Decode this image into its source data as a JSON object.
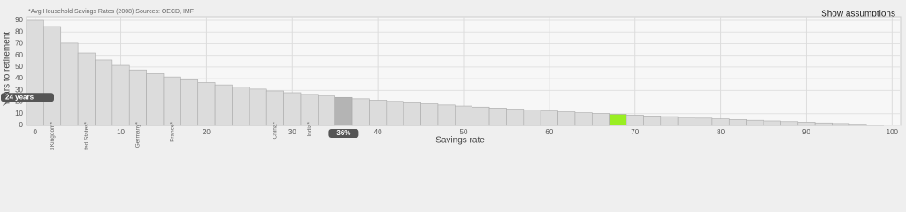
{
  "note": "*Avg Household Savings Rates (2008) Sources: OECD, IMF",
  "link": "Show assumptions",
  "chart_data": {
    "type": "bar",
    "x_label": "Savings rate",
    "y_label": "Years to retirement",
    "x": [
      0,
      2,
      4,
      6,
      8,
      10,
      12,
      14,
      16,
      18,
      20,
      22,
      24,
      26,
      28,
      30,
      32,
      34,
      36,
      38,
      40,
      42,
      44,
      46,
      48,
      50,
      52,
      54,
      56,
      58,
      60,
      62,
      64,
      66,
      68,
      70,
      72,
      74,
      76,
      78,
      80,
      82,
      84,
      86,
      88,
      90,
      92,
      94,
      96,
      98
    ],
    "values": [
      90,
      84.7,
      70.4,
      62.0,
      56.0,
      51.4,
      47.5,
      44.3,
      41.5,
      39.0,
      36.7,
      34.7,
      32.8,
      31.1,
      29.5,
      28.0,
      26.6,
      25.2,
      24.0,
      22.8,
      21.6,
      20.6,
      19.5,
      18.5,
      17.5,
      16.6,
      15.7,
      14.9,
      14.0,
      13.2,
      12.4,
      11.7,
      10.9,
      10.2,
      9.5,
      8.8,
      8.1,
      7.5,
      6.8,
      6.2,
      5.6,
      5.0,
      4.4,
      3.8,
      3.2,
      2.7,
      2.1,
      1.6,
      1.0,
      0.5
    ],
    "color": "#dcdcdc",
    "highlights": [
      {
        "x": 36,
        "color": "#b4b4b4"
      },
      {
        "x": 68,
        "color": "#99ee22"
      }
    ],
    "marker": {
      "x": 36,
      "x_label": "36%",
      "y": 24,
      "y_label": "24 years"
    },
    "annotations": [
      {
        "x": 2,
        "text": "United Kingdom*"
      },
      {
        "x": 6,
        "text": "United States*"
      },
      {
        "x": 12,
        "text": "Germany*"
      },
      {
        "x": 16,
        "text": "France*"
      },
      {
        "x": 28,
        "text": "China*"
      },
      {
        "x": 32,
        "text": "India*"
      }
    ],
    "xlim": [
      -1,
      101
    ],
    "ylim": [
      0,
      90
    ],
    "xticks": [
      0,
      10,
      20,
      30,
      40,
      50,
      60,
      70,
      80,
      90,
      100
    ],
    "yticks": [
      0,
      10,
      20,
      30,
      40,
      50,
      60,
      70,
      80,
      90
    ],
    "grid": true
  }
}
